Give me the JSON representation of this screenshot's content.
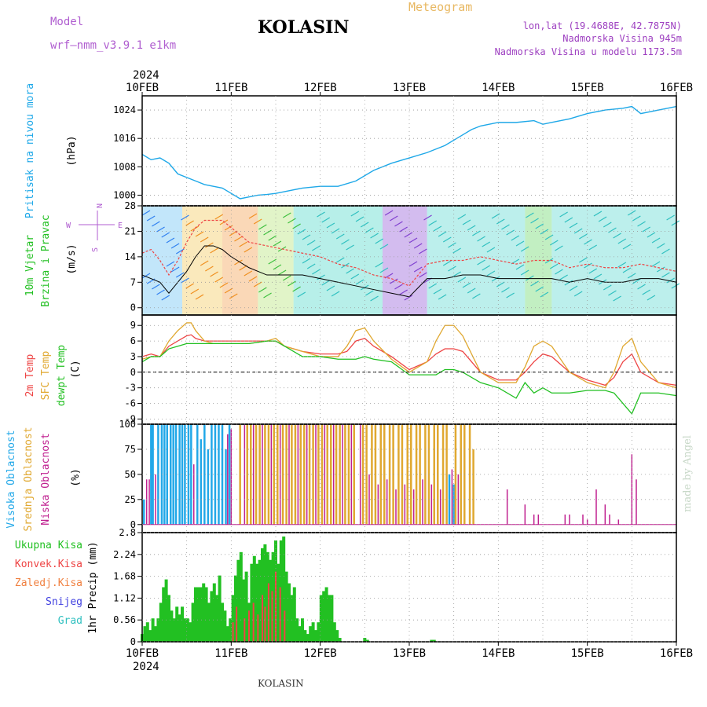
{
  "header": {
    "model_label": "Model",
    "model_name": "wrf—nmm_v3.9.1  e1km",
    "station": "KOLASIN",
    "meteogram": "Meteogram",
    "lonlat": "lon,lat (19.4688E, 42.7875N)",
    "alt1": "Nadmorska Visina 945m",
    "alt2": "Nadmorska Visina u modelu 1173.5m",
    "footer": "KOLASIN",
    "credit": "made by Angel",
    "colors": {
      "model": "#b05ed0",
      "title": "#000000",
      "meteogram": "#e8b862",
      "meta": "#9d3fc0"
    }
  },
  "time_axis": {
    "year_top": "2024",
    "year_bottom": "2024",
    "labels": [
      "10FEB",
      "11FEB",
      "12FEB",
      "13FEB",
      "14FEB",
      "15FEB",
      "16FEB"
    ]
  },
  "panel_pressure": {
    "label_lines": [
      "Pritisak na nivou mora"
    ],
    "unit": "(hPa)",
    "yticks": [
      "1000",
      "1008",
      "1016",
      "1024"
    ],
    "ylim": [
      997,
      1028
    ],
    "color": "#1ea8e8"
  },
  "panel_wind": {
    "label_lines": [
      "10m Vjetar",
      "Brzina i Pravac"
    ],
    "label_color": "#22c022",
    "unit": "(m/s)",
    "yticks": [
      "0",
      "7",
      "14",
      "21",
      "28"
    ],
    "ylim": [
      -2,
      28
    ],
    "compass": {
      "n": "N",
      "w": "W",
      "e": "E",
      "s": "S"
    },
    "mean_color": "#000000",
    "gust_color": "#ee4444"
  },
  "panel_temp": {
    "labels": [
      {
        "text": "2m Temp",
        "color": "#ee4444"
      },
      {
        "text": "SFC Temp",
        "color": "#e0a830"
      },
      {
        "text": "dewpt Temp",
        "color": "#22c022"
      }
    ],
    "unit": "(C)",
    "yticks": [
      "-9",
      "-6",
      "-3",
      "0",
      "3",
      "6",
      "9"
    ],
    "ylim": [
      -10,
      11
    ]
  },
  "panel_cloud": {
    "labels": [
      {
        "text": "Visoka Oblacnost",
        "color": "#22a8e8"
      },
      {
        "text": "Srednja Oblacnost",
        "color": "#e0a830"
      },
      {
        "text": "Niska Oblacnost",
        "color": "#c02090"
      }
    ],
    "unit": "(%)",
    "yticks": [
      "0",
      "25",
      "50",
      "75",
      "100"
    ],
    "ylim": [
      0,
      100
    ]
  },
  "panel_precip": {
    "legend": [
      {
        "text": "Ukupna Kisa",
        "color": "#22c022"
      },
      {
        "text": "Konvek.Kisa",
        "color": "#ee4444"
      },
      {
        "text": "Zaledj.Kisa",
        "color": "#f08040"
      },
      {
        "text": "Snijeg",
        "color": "#4040e0"
      },
      {
        "text": "Grad",
        "color": "#30c0c0"
      }
    ],
    "unit": "1hr Precip (mm)",
    "yticks": [
      "0",
      "0.56",
      "1.12",
      "1.68",
      "2.24",
      "2.8"
    ],
    "ylim": [
      0,
      2.8
    ]
  },
  "chart_data": [
    {
      "type": "line",
      "name": "pressure",
      "ylabel": "Pritisak na nivou mora (hPa)",
      "ylim": [
        997,
        1028
      ],
      "x_days": [
        0,
        0.1,
        0.2,
        0.3,
        0.4,
        0.5,
        0.6,
        0.7,
        0.8,
        0.9,
        1.0,
        1.1,
        1.2,
        1.3,
        1.4,
        1.5,
        1.6,
        1.8,
        2.0,
        2.2,
        2.4,
        2.6,
        2.8,
        3.0,
        3.2,
        3.4,
        3.6,
        3.7,
        3.8,
        4.0,
        4.2,
        4.4,
        4.5,
        4.6,
        4.8,
        5.0,
        5.2,
        5.4,
        5.5,
        5.6,
        5.8,
        6.0
      ],
      "values": [
        1011.5,
        1010,
        1010.5,
        1009,
        1006,
        1005,
        1004,
        1003,
        1002.5,
        1002,
        1000.5,
        999,
        999.5,
        1000,
        1000.2,
        1000.5,
        1001,
        1002,
        1002.5,
        1002.5,
        1004,
        1007,
        1009,
        1010.5,
        1012,
        1014,
        1017,
        1018.5,
        1019.5,
        1020.5,
        1020.5,
        1021,
        1020,
        1020.5,
        1021.5,
        1023,
        1024,
        1024.5,
        1025,
        1023,
        1024,
        1025
      ]
    },
    {
      "type": "line",
      "name": "wind",
      "ylabel": "10m Vjetar Brzina i Pravac (m/s)",
      "ylim": [
        -2,
        28
      ],
      "x_days": [
        0,
        0.1,
        0.2,
        0.3,
        0.4,
        0.5,
        0.6,
        0.7,
        0.8,
        0.9,
        1.0,
        1.2,
        1.4,
        1.6,
        1.8,
        2.0,
        2.2,
        2.4,
        2.6,
        2.8,
        3.0,
        3.2,
        3.4,
        3.6,
        3.8,
        4.0,
        4.2,
        4.4,
        4.6,
        4.8,
        5.0,
        5.2,
        5.4,
        5.6,
        5.8,
        6.0
      ],
      "mean": [
        9,
        8,
        7,
        4,
        7,
        10,
        14,
        17,
        17,
        16,
        14,
        11,
        9,
        9,
        9,
        8,
        7,
        6,
        5,
        4,
        3,
        8,
        8,
        9,
        9,
        8,
        8,
        8,
        8,
        7,
        8,
        7,
        7,
        8,
        8,
        7
      ],
      "gust": [
        15,
        16,
        13,
        9,
        13,
        18,
        22,
        24,
        24,
        24,
        22,
        18,
        17,
        16,
        15,
        14,
        12,
        11,
        9,
        8,
        6,
        12,
        13,
        13,
        14,
        13,
        12,
        13,
        13,
        11,
        12,
        11,
        11,
        12,
        11,
        10
      ]
    },
    {
      "type": "line",
      "ylabel": "(C)",
      "ylim": [
        -10,
        11
      ],
      "x_days": [
        0,
        0.1,
        0.2,
        0.3,
        0.4,
        0.5,
        0.55,
        0.6,
        0.7,
        0.8,
        1.0,
        1.2,
        1.4,
        1.5,
        1.6,
        1.8,
        2.0,
        2.2,
        2.3,
        2.4,
        2.5,
        2.6,
        2.8,
        3.0,
        3.2,
        3.3,
        3.4,
        3.5,
        3.6,
        3.8,
        4.0,
        4.2,
        4.3,
        4.4,
        4.5,
        4.6,
        4.8,
        5.0,
        5.2,
        5.3,
        5.4,
        5.5,
        5.6,
        5.8,
        6.0
      ],
      "series": [
        {
          "name": "2m Temp",
          "color": "#ee4444",
          "values": [
            3,
            3.5,
            3,
            5,
            6,
            7,
            7.2,
            6.5,
            6,
            6,
            6,
            6,
            6,
            6,
            5,
            4,
            3.5,
            3.5,
            4,
            6,
            6.5,
            5,
            3,
            0.5,
            2,
            3.5,
            4.5,
            4.5,
            4,
            0,
            -1.5,
            -1.5,
            0,
            2,
            3.5,
            3,
            0,
            -1.5,
            -2.5,
            -1,
            2,
            3.5,
            0,
            -2,
            -2.5
          ]
        },
        {
          "name": "SFC Temp",
          "color": "#e0a830",
          "values": [
            2.5,
            3,
            3,
            6,
            8,
            9.5,
            9.5,
            8,
            6,
            5.5,
            5.5,
            5.5,
            6,
            6.5,
            5,
            4,
            3,
            3,
            5,
            8,
            8.5,
            6,
            2.5,
            0,
            2,
            6,
            9,
            9,
            7,
            0,
            -2,
            -2,
            1,
            5,
            6,
            5,
            0,
            -2,
            -3,
            0,
            5,
            6.5,
            2,
            -2,
            -3
          ]
        },
        {
          "name": "dewpt Temp",
          "color": "#22c022",
          "values": [
            2,
            3,
            3,
            4.5,
            5,
            5.5,
            5.5,
            5.5,
            5.5,
            5.5,
            5.5,
            5.5,
            6,
            6,
            5,
            3,
            3,
            2.5,
            2.5,
            2.5,
            3,
            2.5,
            2,
            -0.5,
            -0.5,
            -0.5,
            0.5,
            0.5,
            0,
            -2,
            -3,
            -5,
            -2,
            -4,
            -3,
            -4,
            -4,
            -3.5,
            -3.5,
            -4,
            -6,
            -8,
            -4,
            -4,
            -4.5
          ]
        }
      ]
    },
    {
      "type": "bar",
      "ylabel": "(%)",
      "ylim": [
        0,
        100
      ],
      "series": [
        {
          "name": "Visoka Oblacnost",
          "color": "#22a8e8",
          "x_days": [
            0.02,
            0.1,
            0.12,
            0.18,
            0.22,
            0.25,
            0.28,
            0.32,
            0.35,
            0.38,
            0.42,
            0.45,
            0.48,
            0.52,
            0.55,
            0.62,
            0.66,
            0.7,
            0.74,
            0.78,
            0.82,
            0.86,
            0.9,
            0.94,
            0.98,
            3.45,
            3.5
          ],
          "values": [
            25,
            100,
            100,
            100,
            100,
            100,
            100,
            100,
            100,
            100,
            100,
            100,
            100,
            100,
            100,
            100,
            85,
            100,
            75,
            100,
            100,
            100,
            100,
            75,
            100,
            50,
            40
          ]
        },
        {
          "name": "Srednja Oblacnost",
          "color": "#e0a830",
          "x_days": [
            1.1,
            1.18,
            1.22,
            1.28,
            1.32,
            1.38,
            1.42,
            1.48,
            1.52,
            1.58,
            1.62,
            1.68,
            1.72,
            1.78,
            1.82,
            1.88,
            1.92,
            1.98,
            2.02,
            2.08,
            2.12,
            2.18,
            2.22,
            2.28,
            2.32,
            2.38,
            2.48,
            2.52,
            2.58,
            2.62,
            2.68,
            2.72,
            2.78,
            2.82,
            2.88,
            2.92,
            2.98,
            3.02,
            3.08,
            3.12,
            3.18,
            3.22,
            3.28,
            3.32,
            3.38,
            3.42,
            3.52,
            3.58,
            3.62,
            3.68,
            3.72
          ],
          "values": [
            100,
            100,
            100,
            100,
            100,
            100,
            100,
            100,
            100,
            100,
            100,
            100,
            100,
            100,
            100,
            100,
            100,
            100,
            100,
            100,
            100,
            100,
            100,
            100,
            100,
            100,
            100,
            100,
            100,
            100,
            100,
            100,
            100,
            100,
            100,
            100,
            100,
            100,
            100,
            100,
            100,
            100,
            100,
            100,
            100,
            100,
            100,
            100,
            100,
            100,
            75
          ]
        },
        {
          "name": "Niska Oblacnost",
          "color": "#c02090",
          "x_days": [
            0.05,
            0.08,
            0.15,
            0.58,
            0.96,
            1.0,
            1.15,
            1.25,
            1.35,
            1.45,
            1.55,
            1.65,
            1.75,
            1.85,
            1.95,
            2.05,
            2.15,
            2.25,
            2.35,
            2.45,
            2.55,
            2.65,
            2.75,
            2.85,
            2.95,
            3.05,
            3.15,
            3.25,
            3.35,
            3.48,
            3.55,
            4.1,
            4.3,
            4.4,
            4.45,
            4.75,
            4.8,
            4.95,
            5.0,
            5.1,
            5.2,
            5.25,
            5.35,
            5.5,
            5.55
          ],
          "values": [
            45,
            45,
            50,
            60,
            90,
            95,
            100,
            100,
            100,
            100,
            100,
            100,
            100,
            100,
            100,
            100,
            100,
            100,
            100,
            100,
            50,
            40,
            45,
            35,
            40,
            35,
            45,
            40,
            35,
            55,
            50,
            35,
            20,
            10,
            10,
            10,
            10,
            10,
            5,
            35,
            20,
            10,
            5,
            70,
            45
          ]
        }
      ]
    },
    {
      "type": "bar",
      "ylabel": "1hr Precip (mm)",
      "ylim": [
        0,
        2.8
      ],
      "series": [
        {
          "name": "Ukupna Kisa",
          "color": "#22c022",
          "x_days": [
            0.0,
            0.03,
            0.06,
            0.09,
            0.12,
            0.15,
            0.18,
            0.21,
            0.24,
            0.27,
            0.3,
            0.33,
            0.36,
            0.39,
            0.42,
            0.45,
            0.48,
            0.51,
            0.54,
            0.57,
            0.6,
            0.63,
            0.66,
            0.69,
            0.72,
            0.75,
            0.78,
            0.81,
            0.84,
            0.87,
            0.9,
            0.93,
            0.96,
            0.99,
            1.02,
            1.05,
            1.08,
            1.11,
            1.14,
            1.17,
            1.2,
            1.23,
            1.26,
            1.29,
            1.32,
            1.35,
            1.38,
            1.41,
            1.44,
            1.47,
            1.5,
            1.53,
            1.56,
            1.59,
            1.62,
            1.65,
            1.68,
            1.71,
            1.74,
            1.77,
            1.8,
            1.83,
            1.86,
            1.89,
            1.92,
            1.95,
            1.98,
            2.01,
            2.04,
            2.07,
            2.1,
            2.13,
            2.16,
            2.19,
            2.22,
            2.5,
            2.53,
            3.25,
            3.28
          ],
          "values": [
            0.2,
            0.4,
            0.5,
            0.3,
            0.6,
            0.4,
            0.6,
            1.0,
            1.4,
            1.6,
            1.2,
            0.8,
            0.6,
            0.9,
            0.7,
            0.9,
            0.6,
            0.6,
            0.5,
            1.0,
            1.4,
            1.4,
            1.4,
            1.5,
            1.4,
            1.0,
            1.3,
            1.5,
            1.2,
            1.7,
            1.0,
            0.8,
            0.4,
            0.6,
            1.2,
            1.7,
            2.1,
            2.3,
            1.6,
            1.8,
            1.0,
            2.0,
            2.2,
            2.0,
            2.1,
            2.4,
            2.5,
            2.3,
            2.1,
            2.3,
            2.6,
            2.0,
            2.6,
            2.7,
            1.8,
            1.5,
            1.2,
            1.4,
            0.6,
            0.4,
            0.6,
            0.3,
            0.2,
            0.4,
            0.5,
            0.3,
            0.5,
            1.2,
            1.3,
            1.4,
            1.2,
            1.2,
            0.5,
            0.3,
            0.1,
            0.1,
            0.05,
            0.05,
            0.05
          ]
        },
        {
          "name": "Konvek.Kisa",
          "color": "#ee4444",
          "x_days": [
            1.02,
            1.06,
            1.15,
            1.2,
            1.25,
            1.3,
            1.35,
            1.38,
            1.42,
            1.46,
            1.5,
            1.55,
            1.6
          ],
          "values": [
            0.5,
            0.9,
            0.6,
            0.8,
            1.0,
            0.7,
            1.2,
            0.9,
            1.5,
            1.3,
            1.8,
            1.4,
            0.8
          ]
        }
      ]
    }
  ]
}
